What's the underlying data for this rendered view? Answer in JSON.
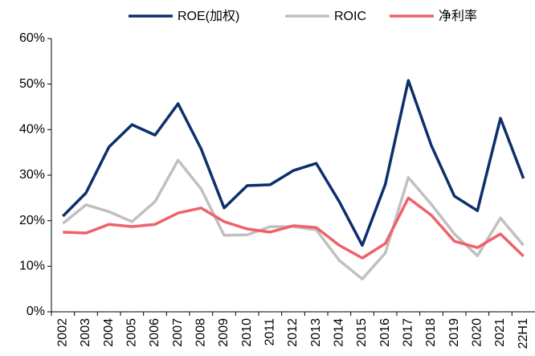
{
  "chart_data": {
    "type": "line",
    "categories": [
      "2002",
      "2003",
      "2004",
      "2005",
      "2006",
      "2007",
      "2008",
      "2009",
      "2010",
      "2011",
      "2012",
      "2013",
      "2014",
      "2015",
      "2016",
      "2017",
      "2018",
      "2019",
      "2020",
      "2021",
      "22H1"
    ],
    "series": [
      {
        "name": "ROE(加权)",
        "color": "#0d2f6b",
        "values": [
          21.0,
          26.1,
          36.2,
          41.1,
          38.8,
          45.7,
          35.8,
          22.8,
          27.7,
          27.9,
          31.0,
          32.6,
          24.2,
          14.6,
          28.0,
          50.8,
          36.5,
          25.4,
          22.2,
          42.5,
          29.3
        ]
      },
      {
        "name": "ROIC",
        "color": "#c0c0c0",
        "values": [
          19.4,
          23.5,
          22.0,
          19.8,
          24.2,
          33.3,
          27.0,
          16.8,
          16.9,
          18.7,
          18.7,
          18.0,
          11.3,
          7.2,
          12.9,
          29.5,
          23.6,
          17.1,
          12.3,
          20.6,
          14.6
        ]
      },
      {
        "name": "净利率",
        "color": "#f0606a",
        "values": [
          17.5,
          17.3,
          19.2,
          18.7,
          19.2,
          21.7,
          22.8,
          19.8,
          18.2,
          17.5,
          18.9,
          18.5,
          14.6,
          11.8,
          15.0,
          25.0,
          21.2,
          15.5,
          14.1,
          17.1,
          12.2
        ]
      }
    ],
    "ylim": [
      0,
      60
    ],
    "yticks": [
      {
        "value": 0,
        "label": "0%"
      },
      {
        "value": 10,
        "label": "10%"
      },
      {
        "value": 20,
        "label": "20%"
      },
      {
        "value": 30,
        "label": "30%"
      },
      {
        "value": 40,
        "label": "40%"
      },
      {
        "value": 50,
        "label": "50%"
      },
      {
        "value": 60,
        "label": "60%"
      }
    ],
    "legend": "top"
  }
}
